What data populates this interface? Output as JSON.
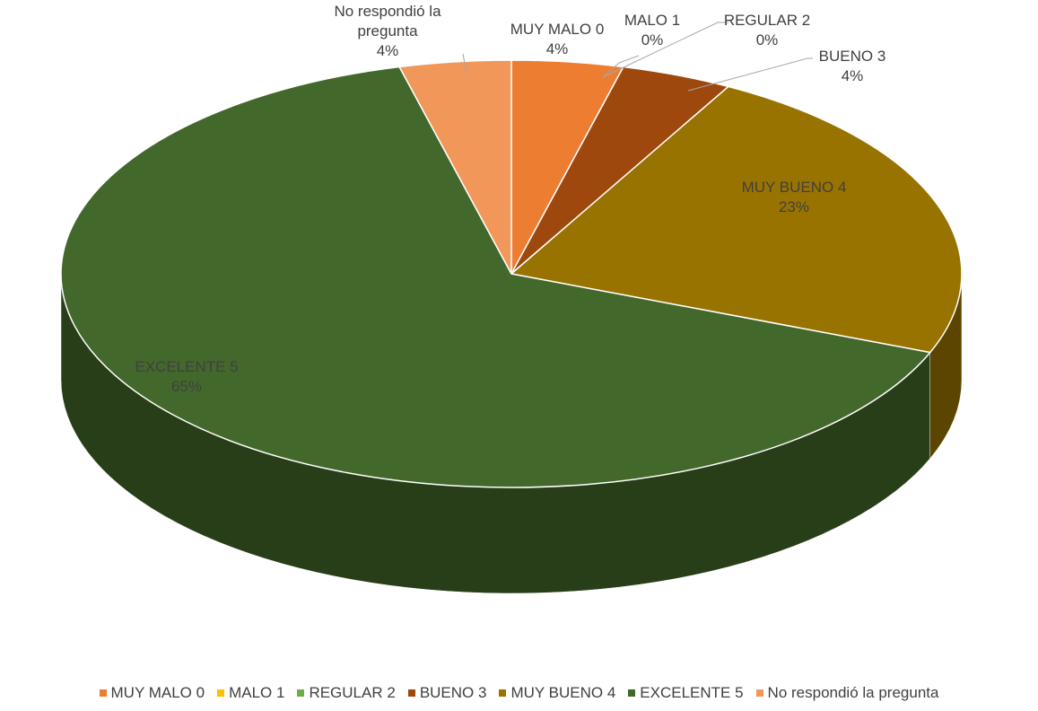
{
  "chart_data": {
    "type": "pie",
    "categories": [
      "MUY MALO 0",
      "MALO 1",
      "REGULAR 2",
      "BUENO 3",
      "MUY BUENO 4",
      "EXCELENTE 5",
      "No respondió la pregunta"
    ],
    "values": [
      4,
      0,
      0,
      4,
      23,
      65,
      4
    ],
    "value_labels": [
      "4%",
      "0%",
      "0%",
      "4%",
      "23%",
      "65%",
      "4%"
    ],
    "colors": [
      "#ed7d31",
      "#ffc000",
      "#70ad47",
      "#9e480e",
      "#997300",
      "#43682b",
      "#f1975a"
    ],
    "legend": "bottom"
  }
}
